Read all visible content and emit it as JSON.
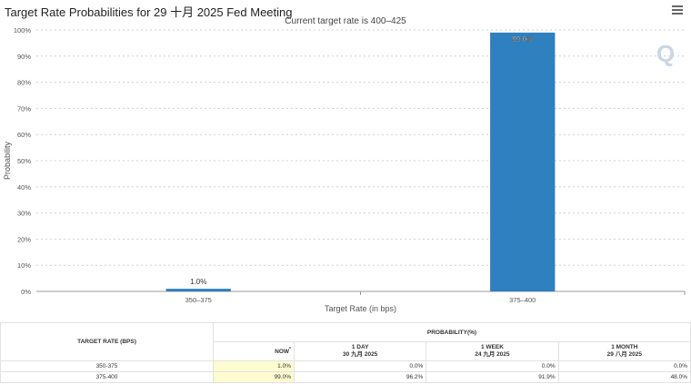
{
  "header": {
    "title": "Target Rate Probabilities for 29 十月 2025 Fed Meeting",
    "subtitle": "Current target rate is 400–425"
  },
  "chart_data": {
    "type": "bar",
    "categories": [
      "350–375",
      "375–400"
    ],
    "values": [
      1.0,
      99.0
    ],
    "data_labels": [
      "1.0%",
      "99.0%"
    ],
    "xlabel": "Target Rate (in bps)",
    "ylabel": "Probability",
    "ylim": [
      0,
      100
    ],
    "y_ticks": [
      "0%",
      "10%",
      "20%",
      "30%",
      "40%",
      "50%",
      "60%",
      "70%",
      "80%",
      "90%",
      "100%"
    ],
    "grid": true,
    "bar_color": "#2e80bf"
  },
  "table": {
    "col_rate": "TARGET RATE (BPS)",
    "col_prob": "PROBABILITY(%)",
    "now": "NOW",
    "now_mark": "*",
    "d1": "1 DAY",
    "d1_date": "30 九月 2025",
    "w1": "1 WEEK",
    "w1_date": "24 九月 2025",
    "m1": "1 MONTH",
    "m1_date": "29 八月 2025",
    "rows": [
      {
        "rate": "350-375",
        "now": "1.0%",
        "d1": "0.0%",
        "w1": "0.0%",
        "m1": "0.0%"
      },
      {
        "rate": "375-400",
        "now": "99.0%",
        "d1": "96.2%",
        "w1": "91.9%",
        "m1": "48.0%"
      }
    ]
  },
  "watermark": "Q"
}
